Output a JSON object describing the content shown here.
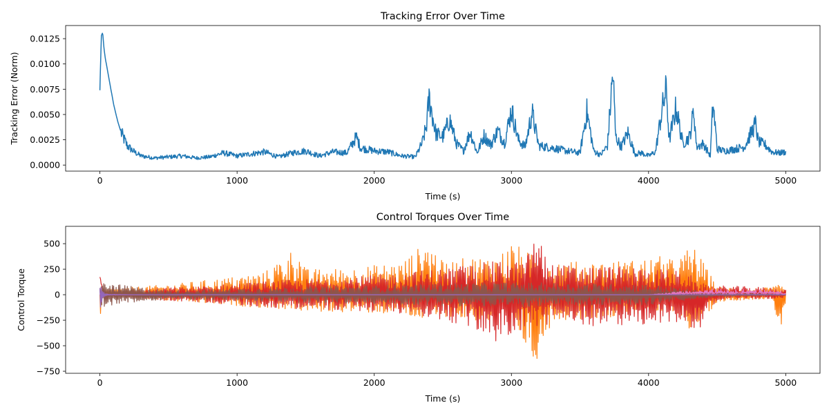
{
  "chart_data": [
    {
      "type": "line",
      "title": "Tracking Error Over Time",
      "xlabel": "Time (s)",
      "ylabel": "Tracking Error (Norm)",
      "xlim": [
        -250,
        5250
      ],
      "ylim": [
        -0.0006,
        0.0138
      ],
      "xticks": [
        0,
        1000,
        2000,
        3000,
        4000,
        5000
      ],
      "yticks": [
        0.0,
        0.0025,
        0.005,
        0.0075,
        0.01,
        0.0125
      ],
      "xtick_labels": [
        "0",
        "1000",
        "2000",
        "3000",
        "4000",
        "5000"
      ],
      "ytick_labels": [
        "0.0000",
        "0.0025",
        "0.0050",
        "0.0075",
        "0.0100",
        "0.0125"
      ],
      "grid": false,
      "series": [
        {
          "color": "#1f77b4",
          "x": [
            0,
            10,
            20,
            30,
            40,
            60,
            80,
            100,
            130,
            160,
            200,
            250,
            300,
            400,
            500,
            600,
            700,
            800,
            900,
            1000,
            1100,
            1200,
            1300,
            1400,
            1500,
            1600,
            1700,
            1800,
            1870,
            1900,
            2000,
            2100,
            2200,
            2300,
            2350,
            2380,
            2400,
            2450,
            2500,
            2550,
            2600,
            2650,
            2700,
            2750,
            2800,
            2850,
            2900,
            2950,
            3000,
            3050,
            3100,
            3150,
            3200,
            3300,
            3400,
            3500,
            3550,
            3600,
            3650,
            3700,
            3740,
            3760,
            3800,
            3850,
            3900,
            3950,
            4000,
            4050,
            4100,
            4130,
            4150,
            4200,
            4250,
            4300,
            4330,
            4350,
            4400,
            4450,
            4470,
            4500,
            4550,
            4600,
            4700,
            4780,
            4800,
            4850,
            4900,
            4950,
            5000
          ],
          "y": [
            0.0074,
            0.0128,
            0.0131,
            0.0115,
            0.0105,
            0.009,
            0.0075,
            0.006,
            0.0043,
            0.003,
            0.0019,
            0.0013,
            0.0009,
            0.0007,
            0.0008,
            0.0009,
            0.0007,
            0.0008,
            0.0012,
            0.0009,
            0.0011,
            0.0013,
            0.0008,
            0.0012,
            0.0014,
            0.0009,
            0.0013,
            0.0012,
            0.0028,
            0.0017,
            0.0014,
            0.0013,
            0.0009,
            0.0008,
            0.0022,
            0.0038,
            0.0066,
            0.0031,
            0.0028,
            0.0045,
            0.0021,
            0.0014,
            0.0033,
            0.0012,
            0.0029,
            0.002,
            0.0034,
            0.0022,
            0.0055,
            0.0025,
            0.0018,
            0.0052,
            0.0019,
            0.0017,
            0.0014,
            0.0012,
            0.0053,
            0.0014,
            0.001,
            0.0019,
            0.0092,
            0.0028,
            0.0018,
            0.0032,
            0.0011,
            0.0012,
            0.0009,
            0.0013,
            0.0056,
            0.0075,
            0.0024,
            0.0057,
            0.0021,
            0.0028,
            0.0054,
            0.0018,
            0.0021,
            0.0009,
            0.0062,
            0.0016,
            0.0014,
            0.0015,
            0.0018,
            0.0041,
            0.0023,
            0.002,
            0.0013,
            0.0012,
            0.0013
          ]
        }
      ]
    },
    {
      "type": "line",
      "title": "Control Torques Over Time",
      "xlabel": "Time (s)",
      "ylabel": "Control Torque",
      "xlim": [
        -250,
        5250
      ],
      "ylim": [
        -770,
        670
      ],
      "xticks": [
        0,
        1000,
        2000,
        3000,
        4000,
        5000
      ],
      "yticks": [
        -750,
        -500,
        -250,
        0,
        250,
        500
      ],
      "xtick_labels": [
        "0",
        "1000",
        "2000",
        "3000",
        "4000",
        "5000"
      ],
      "ytick_labels": [
        "−750",
        "−500",
        "−250",
        "0",
        "250",
        "500"
      ],
      "grid": false,
      "series": [
        {
          "color": "#ff7f0e",
          "x": [
            0,
            10,
            20,
            40,
            100,
            300,
            500,
            700,
            1000,
            1200,
            1430,
            1500,
            1800,
            2000,
            2200,
            2395,
            2500,
            2700,
            2900,
            3000,
            3165,
            3300,
            3500,
            3700,
            3900,
            4100,
            4200,
            4320,
            4500,
            4700,
            4900,
            4960,
            5000
          ],
          "y": [
            -470,
            -200,
            -60,
            -30,
            -20,
            -40,
            -60,
            -80,
            -110,
            -130,
            -150,
            -170,
            -170,
            -180,
            -200,
            -260,
            -210,
            -250,
            -280,
            -220,
            -700,
            -250,
            -240,
            -220,
            -200,
            -180,
            -160,
            -380,
            -70,
            -50,
            -40,
            -380,
            -60
          ],
          "upper": [
            0,
            20,
            40,
            60,
            60,
            80,
            100,
            130,
            180,
            220,
            480,
            250,
            260,
            290,
            320,
            540,
            320,
            370,
            380,
            520,
            380,
            350,
            320,
            330,
            340,
            380,
            330,
            500,
            80,
            60,
            70,
            100,
            50
          ]
        },
        {
          "color": "#d62728",
          "x": [
            0,
            10,
            30,
            100,
            300,
            500,
            700,
            900,
            1100,
            1300,
            1500,
            1700,
            1900,
            2100,
            2300,
            2500,
            2700,
            2900,
            3100,
            3170,
            3300,
            3500,
            3700,
            3900,
            4100,
            4300,
            4330,
            4500,
            4700,
            4900,
            5000
          ],
          "y": [
            310,
            120,
            20,
            -20,
            -40,
            -60,
            -70,
            -90,
            -110,
            -130,
            -140,
            -150,
            -160,
            -180,
            -190,
            -260,
            -330,
            -470,
            -330,
            -350,
            -280,
            -300,
            -310,
            -300,
            -290,
            -260,
            -420,
            -50,
            -40,
            -40,
            -30
          ],
          "upper": [
            310,
            120,
            40,
            30,
            50,
            70,
            80,
            100,
            120,
            140,
            150,
            170,
            180,
            200,
            230,
            260,
            300,
            330,
            320,
            610,
            300,
            280,
            280,
            270,
            250,
            220,
            120,
            90,
            80,
            70,
            50
          ]
        },
        {
          "color": "#8c564b",
          "x": [
            0,
            500,
            1000,
            1500,
            2000,
            2500,
            3000,
            3500,
            4000,
            4500,
            5000
          ],
          "y": [
            -120,
            -40,
            -60,
            -80,
            -90,
            -110,
            -120,
            -110,
            -100,
            -20,
            -10
          ],
          "upper": [
            120,
            40,
            60,
            80,
            90,
            110,
            120,
            110,
            100,
            20,
            10
          ]
        },
        {
          "color": "#e377c2",
          "x": [
            0,
            200,
            1000,
            2000,
            3000,
            4000,
            4200,
            4500,
            4800,
            5000
          ],
          "y": [
            -10,
            0,
            0,
            0,
            0,
            0,
            10,
            20,
            20,
            10
          ],
          "upper": [
            10,
            0,
            0,
            0,
            0,
            0,
            30,
            60,
            50,
            30
          ]
        },
        {
          "color": "#9467bd",
          "x": [
            0,
            20,
            60,
            200,
            5000
          ],
          "y": [
            -150,
            -40,
            -5,
            0,
            0
          ],
          "upper": [
            140,
            30,
            5,
            0,
            0
          ]
        }
      ]
    }
  ]
}
